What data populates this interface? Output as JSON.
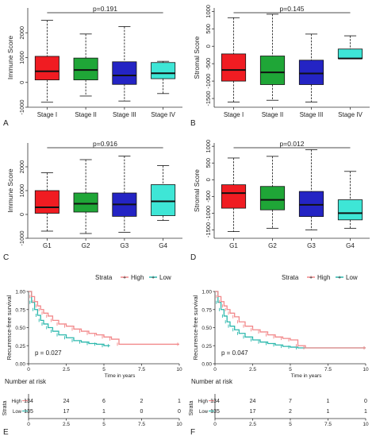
{
  "colors": {
    "red": "#f01c22",
    "green": "#1fa637",
    "blue": "#2424c4",
    "cyan": "#3ee6d6",
    "km_high": "#f2888a",
    "km_low": "#2cb8ad"
  },
  "chart_data": [
    {
      "panel": "A",
      "type": "box",
      "ylabel": "Immune Score",
      "categories": [
        "Stage I",
        "Stage II",
        "Stage III",
        "Stage IV"
      ],
      "ylim": [
        -1000,
        3000
      ],
      "yticks": [
        -1000,
        0,
        1000,
        2000
      ],
      "annotation": "p=0.191",
      "boxes": [
        {
          "min": -800,
          "q1": 100,
          "median": 450,
          "q3": 1050,
          "max": 2500
        },
        {
          "min": -550,
          "q1": 100,
          "median": 500,
          "q3": 980,
          "max": 1950
        },
        {
          "min": -750,
          "q1": -80,
          "median": 280,
          "q3": 830,
          "max": 2250
        },
        {
          "min": -450,
          "q1": 150,
          "median": 370,
          "q3": 800,
          "max": 850
        }
      ]
    },
    {
      "panel": "B",
      "type": "box",
      "ylabel": "Stromal Score",
      "categories": [
        "Stage I",
        "Stage II",
        "Stage III",
        "Stage IV"
      ],
      "ylim": [
        -1750,
        1100
      ],
      "yticks": [
        -1500,
        -1000,
        -500,
        0,
        500,
        1000
      ],
      "annotation": "p=0.145",
      "boxes": [
        {
          "min": -1600,
          "q1": -1000,
          "median": -680,
          "q3": -220,
          "max": 820
        },
        {
          "min": -1550,
          "q1": -1100,
          "median": -750,
          "q3": -280,
          "max": 920
        },
        {
          "min": -1600,
          "q1": -1100,
          "median": -780,
          "q3": -400,
          "max": 350
        },
        {
          "min": -350,
          "q1": -350,
          "median": -350,
          "q3": -80,
          "max": 300
        }
      ]
    },
    {
      "panel": "C",
      "type": "box",
      "ylabel": "Immune Score",
      "categories": [
        "G1",
        "G2",
        "G3",
        "G4"
      ],
      "ylim": [
        -1000,
        3000
      ],
      "yticks": [
        -1000,
        0,
        1000,
        2000
      ],
      "annotation": "p=0.916",
      "boxes": [
        {
          "min": -700,
          "q1": 50,
          "median": 300,
          "q3": 1000,
          "max": 1750
        },
        {
          "min": -800,
          "q1": 100,
          "median": 450,
          "q3": 900,
          "max": 2300
        },
        {
          "min": -750,
          "q1": -80,
          "median": 420,
          "q3": 900,
          "max": 2450
        },
        {
          "min": -250,
          "q1": -50,
          "median": 550,
          "q3": 1250,
          "max": 2050
        }
      ]
    },
    {
      "panel": "D",
      "type": "box",
      "ylabel": "Stromal Score",
      "categories": [
        "G1",
        "G2",
        "G3",
        "G4"
      ],
      "ylim": [
        -1750,
        1100
      ],
      "yticks": [
        -1500,
        -1000,
        -500,
        0,
        500,
        1000
      ],
      "annotation": "p=0.012",
      "boxes": [
        {
          "min": -1550,
          "q1": -850,
          "median": -400,
          "q3": -150,
          "max": 650
        },
        {
          "min": -1450,
          "q1": -900,
          "median": -600,
          "q3": -200,
          "max": 700
        },
        {
          "min": -1500,
          "q1": -1100,
          "median": -750,
          "q3": -350,
          "max": 900
        },
        {
          "min": -1450,
          "q1": -1200,
          "median": -1000,
          "q3": -600,
          "max": 250
        }
      ]
    },
    {
      "panel": "E",
      "type": "line",
      "legend_title": "Strata",
      "legend_items": [
        "High",
        "Low"
      ],
      "ylabel": "Recurrence-free survival",
      "xlabel": "Time in years",
      "xlim": [
        0,
        10
      ],
      "ylim": [
        0,
        1
      ],
      "xticks": [
        0,
        2.5,
        5,
        7.5,
        10
      ],
      "yticks": [
        0,
        0.25,
        0.5,
        0.75,
        1
      ],
      "ytick_labels": [
        "0.00",
        "0.25",
        "0.50",
        "0.75",
        "1.00"
      ],
      "pvalue": "p = 0.027",
      "series": [
        {
          "name": "High",
          "x": [
            0,
            0.2,
            0.4,
            0.6,
            0.8,
            1.0,
            1.3,
            1.6,
            2.0,
            2.5,
            3.0,
            3.5,
            4.0,
            4.5,
            5.0,
            5.5,
            6.0,
            10
          ],
          "y": [
            1.0,
            0.93,
            0.86,
            0.8,
            0.75,
            0.7,
            0.66,
            0.6,
            0.55,
            0.52,
            0.48,
            0.45,
            0.42,
            0.4,
            0.37,
            0.34,
            0.27,
            0.27
          ]
        },
        {
          "name": "Low",
          "x": [
            0,
            0.2,
            0.4,
            0.6,
            0.8,
            1.0,
            1.3,
            1.6,
            2.0,
            2.5,
            3.0,
            3.5,
            4.0,
            4.5,
            5.0,
            5.4
          ],
          "y": [
            1.0,
            0.85,
            0.75,
            0.67,
            0.6,
            0.55,
            0.5,
            0.45,
            0.4,
            0.36,
            0.32,
            0.3,
            0.28,
            0.27,
            0.25,
            0.25
          ]
        }
      ],
      "risk_table": {
        "title": "Number at risk",
        "strata_label": "Strata",
        "rows": [
          {
            "name": "High",
            "values": [
              "134",
              "24",
              "6",
              "2",
              "1"
            ]
          },
          {
            "name": "Low",
            "values": [
              "135",
              "17",
              "1",
              "0",
              "0"
            ]
          }
        ],
        "xticks": [
          "0",
          "2.5",
          "5",
          "7.5",
          "10"
        ]
      }
    },
    {
      "panel": "F",
      "type": "line",
      "legend_title": "Strata",
      "legend_items": [
        "High",
        "Low"
      ],
      "ylabel": "Recurrence-free survival",
      "xlabel": "Time in years",
      "xlim": [
        0,
        10
      ],
      "ylim": [
        0,
        1
      ],
      "xticks": [
        0,
        2.5,
        5,
        7.5,
        10
      ],
      "yticks": [
        0,
        0.25,
        0.5,
        0.75,
        1
      ],
      "ytick_labels": [
        "0.00",
        "0.25",
        "0.50",
        "0.75",
        "1.00"
      ],
      "pvalue": "p = 0.047",
      "series": [
        {
          "name": "High",
          "x": [
            0,
            0.2,
            0.4,
            0.6,
            0.8,
            1.0,
            1.3,
            1.6,
            2.0,
            2.5,
            3.0,
            3.5,
            4.0,
            4.5,
            5.0,
            5.5,
            6.0,
            10
          ],
          "y": [
            1.0,
            0.93,
            0.86,
            0.8,
            0.75,
            0.7,
            0.65,
            0.58,
            0.52,
            0.47,
            0.44,
            0.4,
            0.37,
            0.35,
            0.33,
            0.25,
            0.22,
            0.22
          ]
        },
        {
          "name": "Low",
          "x": [
            0,
            0.2,
            0.4,
            0.6,
            0.8,
            1.0,
            1.3,
            1.6,
            2.0,
            2.5,
            3.0,
            3.5,
            4.0,
            4.5,
            5.0,
            5.5,
            10
          ],
          "y": [
            1.0,
            0.85,
            0.75,
            0.66,
            0.58,
            0.52,
            0.47,
            0.42,
            0.37,
            0.33,
            0.3,
            0.28,
            0.26,
            0.24,
            0.23,
            0.22,
            0.22
          ]
        }
      ],
      "risk_table": {
        "title": "Number at risk",
        "strata_label": "Strata",
        "rows": [
          {
            "name": "High",
            "values": [
              "134",
              "24",
              "7",
              "1",
              "0"
            ]
          },
          {
            "name": "Low",
            "values": [
              "135",
              "17",
              "2",
              "1",
              "1"
            ]
          }
        ],
        "xticks": [
          "0",
          "2.5",
          "5",
          "7.5",
          "10"
        ]
      }
    }
  ]
}
